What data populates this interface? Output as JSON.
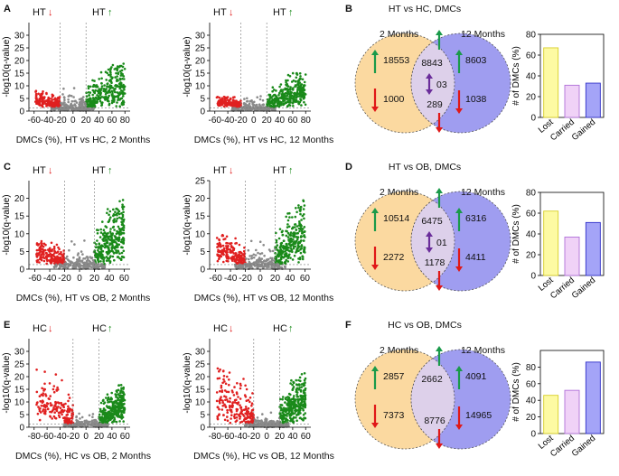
{
  "chart_data": {
    "type": "composite",
    "rows": [
      {
        "panel_volcano": "A",
        "panel_venn": "B",
        "group1": "HT",
        "volcano_ticks_x": [
          "-60",
          "-40",
          "-20",
          "0",
          "20",
          "40",
          "60",
          "80"
        ],
        "volcanoes": [
          {
            "title": "DMCs (%), HT vs HC, 2 Months",
            "ylim": [
              0,
              35
            ],
            "yticks": [
              "0",
              "5",
              "10",
              "15",
              "20",
              "25",
              "30"
            ],
            "left_max_y": 8,
            "right_max_y": 19,
            "center_max_y": 10,
            "sig_lines_x": [
              -20,
              20
            ]
          },
          {
            "title": "DMCs (%), HT vs HC, 12 Months",
            "ylim": [
              0,
              35
            ],
            "yticks": [
              "0",
              "5",
              "10",
              "15",
              "20",
              "25",
              "30"
            ],
            "left_max_y": 6,
            "right_max_y": 15,
            "center_max_y": 7,
            "sig_lines_x": [
              -20,
              20
            ]
          }
        ],
        "venn": {
          "title": "HT vs HC, DMCs",
          "left_label": "2 Months",
          "right_label": "12 Months",
          "left_up": "18553",
          "left_down": "1000",
          "center_up": "8843",
          "center_mixed": "03",
          "center_down": "289",
          "right_up": "8603",
          "right_down": "1038"
        },
        "bar": {
          "categories": [
            "Lost",
            "Carried",
            "Gained"
          ],
          "values": [
            67,
            31,
            33
          ],
          "ylabel": "# of DMCs (%)",
          "ylim": [
            0,
            80
          ],
          "yticks": [
            "0",
            "20",
            "40",
            "60",
            "80"
          ]
        }
      },
      {
        "panel_volcano": "C",
        "panel_venn": "D",
        "group1": "HT",
        "volcano_ticks_x": [
          "-60",
          "-40",
          "-20",
          "0",
          "20",
          "40",
          "60"
        ],
        "volcanoes": [
          {
            "title": "DMCs (%), HT vs OB, 2 Months",
            "ylim": [
              0,
              25
            ],
            "yticks": [
              "0",
              "5",
              "10",
              "15",
              "20"
            ],
            "left_max_y": 8,
            "right_max_y": 20,
            "center_max_y": 9,
            "sig_lines_x": [
              -20,
              20
            ]
          },
          {
            "title": "DMCs (%), HT vs OB, 12 Months",
            "ylim": [
              0,
              25
            ],
            "yticks": [
              "0",
              "5",
              "10",
              "15",
              "20",
              "25"
            ],
            "left_max_y": 10,
            "right_max_y": 20,
            "center_max_y": 10,
            "sig_lines_x": [
              -20,
              20
            ]
          }
        ],
        "venn": {
          "title": "HT vs OB, DMCs",
          "left_label": "2 Months",
          "right_label": "12 Months",
          "left_up": "10514",
          "left_down": "2272",
          "center_up": "6475",
          "center_mixed": "01",
          "center_down": "1178",
          "right_up": "6316",
          "right_down": "4411"
        },
        "bar": {
          "categories": [
            "Lost",
            "Carried",
            "Gained"
          ],
          "values": [
            62,
            37,
            51
          ],
          "ylabel": "# of DMCs (%)",
          "ylim": [
            0,
            80
          ],
          "yticks": [
            "0",
            "20",
            "40",
            "60",
            "80"
          ]
        }
      },
      {
        "panel_volcano": "E",
        "panel_venn": "F",
        "group1": "HC",
        "volcano_ticks_x": [
          "-80",
          "-60",
          "-40",
          "-20",
          "0",
          "20",
          "40",
          "60"
        ],
        "volcanoes": [
          {
            "title": "DMCs (%), HC vs OB, 2 Months",
            "ylim": [
              0,
              35
            ],
            "yticks": [
              "0",
              "5",
              "10",
              "15",
              "20",
              "25",
              "30"
            ],
            "left_max_y": 26,
            "right_max_y": 17,
            "center_max_y": 6,
            "sig_lines_x": [
              -20,
              20
            ]
          },
          {
            "title": "DMCs (%), HC vs OB, 12 Months",
            "ylim": [
              0,
              35
            ],
            "yticks": [
              "0",
              "5",
              "10",
              "15",
              "20",
              "25",
              "30"
            ],
            "left_max_y": 26,
            "right_max_y": 22,
            "center_max_y": 6,
            "sig_lines_x": [
              -20,
              20
            ]
          }
        ],
        "venn": {
          "title": "HC vs OB, DMCs",
          "left_label": "2 Months",
          "right_label": "12 Months",
          "left_up": "2857",
          "left_down": "7373",
          "center_up": "2662",
          "center_mixed": "",
          "center_down": "8776",
          "right_up": "4091",
          "right_down": "14965"
        },
        "bar": {
          "categories": [
            "Lost",
            "Carried",
            "Gained"
          ],
          "values": [
            46,
            52,
            86
          ],
          "ylabel": "# of DMCs (%)",
          "ylim": [
            0,
            100
          ],
          "yticks": [
            "0",
            "20",
            "40",
            "60",
            "80"
          ]
        }
      }
    ],
    "volcano_ylabel": "-log10(q-value)",
    "colors": {
      "up": "#1a8a1a",
      "down": "#e02020",
      "ns": "#8a8a8a",
      "venn_left": "#fbd9a0",
      "venn_right": "#9f9df0",
      "venn_overlap": "#ddd0ea",
      "bar_lost": "#fdfaa3",
      "bar_lost_edge": "#d8cf2a",
      "bar_carried": "#f0d2f7",
      "bar_carried_edge": "#b070d8",
      "bar_gained": "#a4a4f7",
      "bar_gained_edge": "#3030c8",
      "arrow_up": "#1a9a4a",
      "arrow_down": "#e01818",
      "arrow_mixed": "#6a2d9a"
    }
  }
}
